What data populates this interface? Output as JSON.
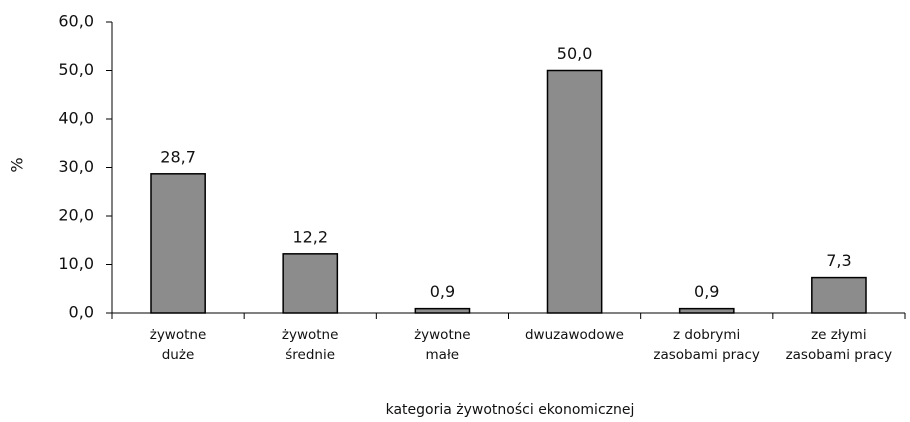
{
  "chart_data": {
    "type": "bar",
    "categories": [
      "żywotne\nduże",
      "żywotne\nśrednie",
      "żywotne\nmałe",
      "dwuzawodowe",
      "z dobrymi\nzasobami pracy",
      "ze złymi\nzasobami pracy"
    ],
    "values": [
      28.7,
      12.2,
      0.9,
      50.0,
      0.9,
      7.3
    ],
    "value_labels": [
      "28,7",
      "12,2",
      "0,9",
      "50,0",
      "0,9",
      "7,3"
    ],
    "color": "#8c8c8c",
    "ylim": [
      0,
      60
    ],
    "yticks": [
      {
        "value": 0,
        "label": "0,0"
      },
      {
        "value": 10,
        "label": "10,0"
      },
      {
        "value": 20,
        "label": "20,0"
      },
      {
        "value": 30,
        "label": "30,0"
      },
      {
        "value": 40,
        "label": "40,0"
      },
      {
        "value": 50,
        "label": "50,0"
      },
      {
        "value": 60,
        "label": "60,0"
      }
    ],
    "ylabel": "%",
    "xlabel": "kategoria żywotności ekonomicznej",
    "grid": false
  }
}
